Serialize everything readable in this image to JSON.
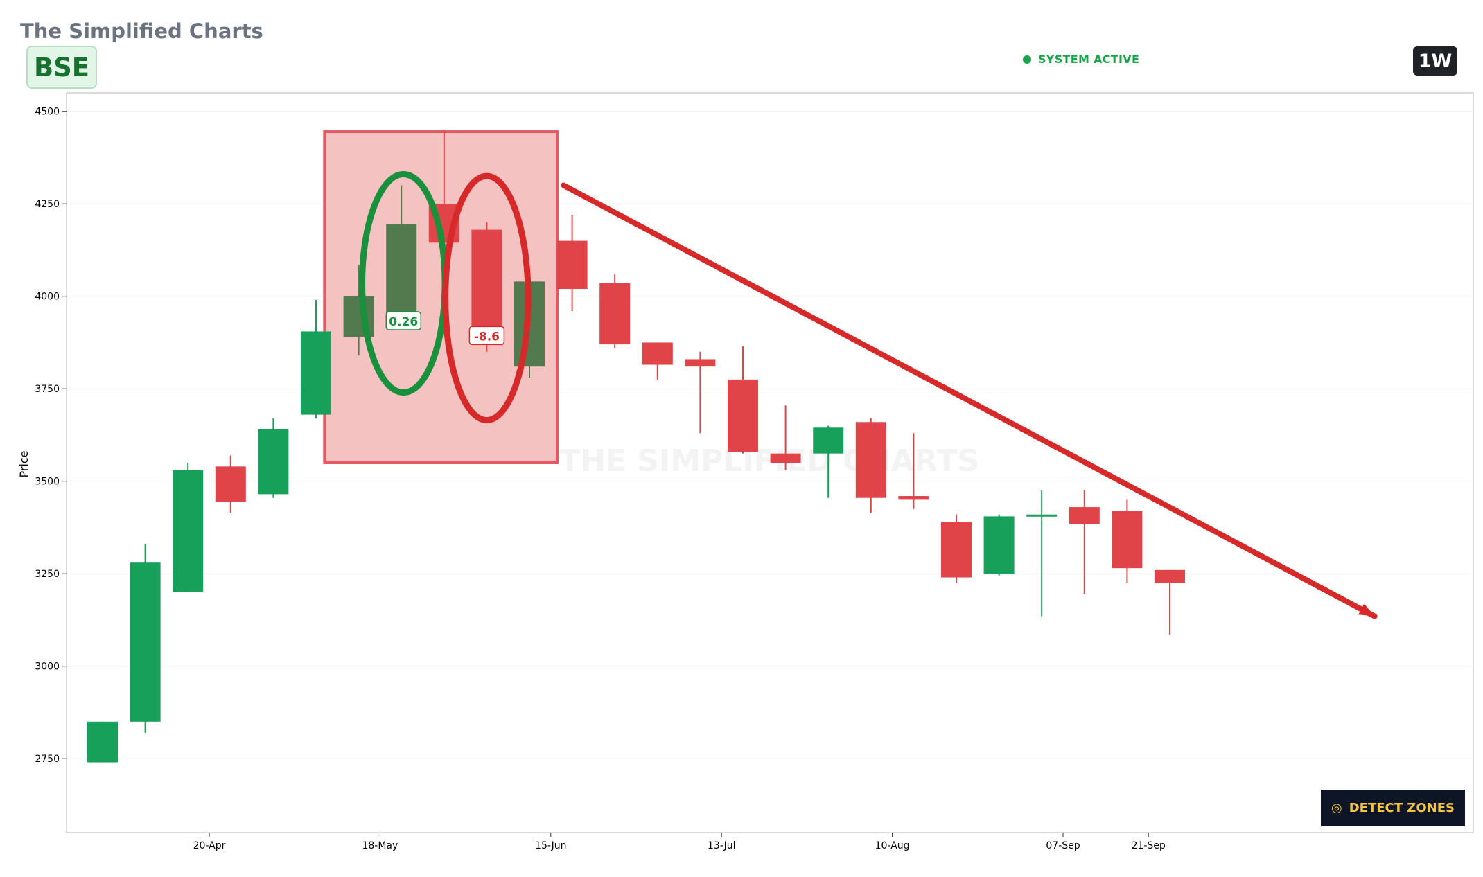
{
  "header": {
    "title": "The Simplified Charts",
    "ticker": "BSE",
    "status": "SYSTEM ACTIVE",
    "timeframe": "1W"
  },
  "detect_button": {
    "label": "DETECT ZONES",
    "icon": "target-icon"
  },
  "watermark": "THE SIMPLIFIED CHARTS",
  "colors": {
    "up": "#16a05a",
    "down": "#e04449",
    "highlight_up": "#527a4e",
    "zone": "#f4bfbf",
    "zone_border": "#e05a60",
    "trend": "#d62a2a"
  },
  "chart_data": {
    "type": "candlestick",
    "ylabel": "Price",
    "ylim": [
      2550,
      4550
    ],
    "yticks": [
      2750,
      3000,
      3250,
      3500,
      3750,
      4000,
      4250,
      4500
    ],
    "xticks": [
      {
        "label": "20-Apr",
        "index": 2.5
      },
      {
        "label": "18-May",
        "index": 6.5
      },
      {
        "label": "15-Jun",
        "index": 10.5
      },
      {
        "label": "13-Jul",
        "index": 14.5
      },
      {
        "label": "10-Aug",
        "index": 18.5
      },
      {
        "label": "07-Sep",
        "index": 22.5
      },
      {
        "label": "21-Sep",
        "index": 24.5
      }
    ],
    "candles": [
      {
        "o": 2740,
        "h": 2850,
        "l": 2740,
        "c": 2850
      },
      {
        "o": 2850,
        "h": 3330,
        "l": 2820,
        "c": 3280
      },
      {
        "o": 3200,
        "h": 3550,
        "l": 3200,
        "c": 3530
      },
      {
        "o": 3540,
        "h": 3570,
        "l": 3415,
        "c": 3445
      },
      {
        "o": 3465,
        "h": 3670,
        "l": 3455,
        "c": 3640
      },
      {
        "o": 3680,
        "h": 3990,
        "l": 3670,
        "c": 3905
      },
      {
        "o": 3890,
        "h": 4085,
        "l": 3840,
        "c": 4000,
        "hl": true
      },
      {
        "o": 3935,
        "h": 4300,
        "l": 3935,
        "c": 4195,
        "hl": true
      },
      {
        "o": 4250,
        "h": 4450,
        "l": 4145,
        "c": 4145
      },
      {
        "o": 4180,
        "h": 4200,
        "l": 3850,
        "c": 3880
      },
      {
        "o": 3810,
        "h": 4040,
        "l": 3780,
        "c": 4040,
        "hl": true
      },
      {
        "o": 4150,
        "h": 4220,
        "l": 3960,
        "c": 4020
      },
      {
        "o": 4035,
        "h": 4060,
        "l": 3860,
        "c": 3870
      },
      {
        "o": 3875,
        "h": 3875,
        "l": 3775,
        "c": 3815
      },
      {
        "o": 3830,
        "h": 3850,
        "l": 3630,
        "c": 3810
      },
      {
        "o": 3775,
        "h": 3865,
        "l": 3575,
        "c": 3580
      },
      {
        "o": 3575,
        "h": 3705,
        "l": 3530,
        "c": 3550
      },
      {
        "o": 3575,
        "h": 3650,
        "l": 3455,
        "c": 3645
      },
      {
        "o": 3660,
        "h": 3670,
        "l": 3415,
        "c": 3455
      },
      {
        "o": 3460,
        "h": 3630,
        "l": 3425,
        "c": 3450
      },
      {
        "o": 3390,
        "h": 3410,
        "l": 3225,
        "c": 3240
      },
      {
        "o": 3250,
        "h": 3410,
        "l": 3245,
        "c": 3405
      },
      {
        "o": 3405,
        "h": 3475,
        "l": 3135,
        "c": 3410
      },
      {
        "o": 3430,
        "h": 3475,
        "l": 3195,
        "c": 3385
      },
      {
        "o": 3420,
        "h": 3450,
        "l": 3225,
        "c": 3265
      },
      {
        "o": 3260,
        "h": 3260,
        "l": 3085,
        "c": 3225
      }
    ],
    "zone": {
      "i0": 5.2,
      "i1": 10.65,
      "p0": 3550,
      "p1": 4445
    },
    "ellipses": [
      {
        "cx": 7.05,
        "cy": 4035,
        "rx": 1.0,
        "ry": 295,
        "color": "#18903c",
        "label": "0.26"
      },
      {
        "cx": 9.0,
        "cy": 3995,
        "rx": 1.0,
        "ry": 330,
        "color": "#d62a2a",
        "label": "-8.6"
      }
    ],
    "trendline": {
      "i0": 10.8,
      "p0": 4300,
      "i1": 29.8,
      "p1": 3135
    }
  }
}
